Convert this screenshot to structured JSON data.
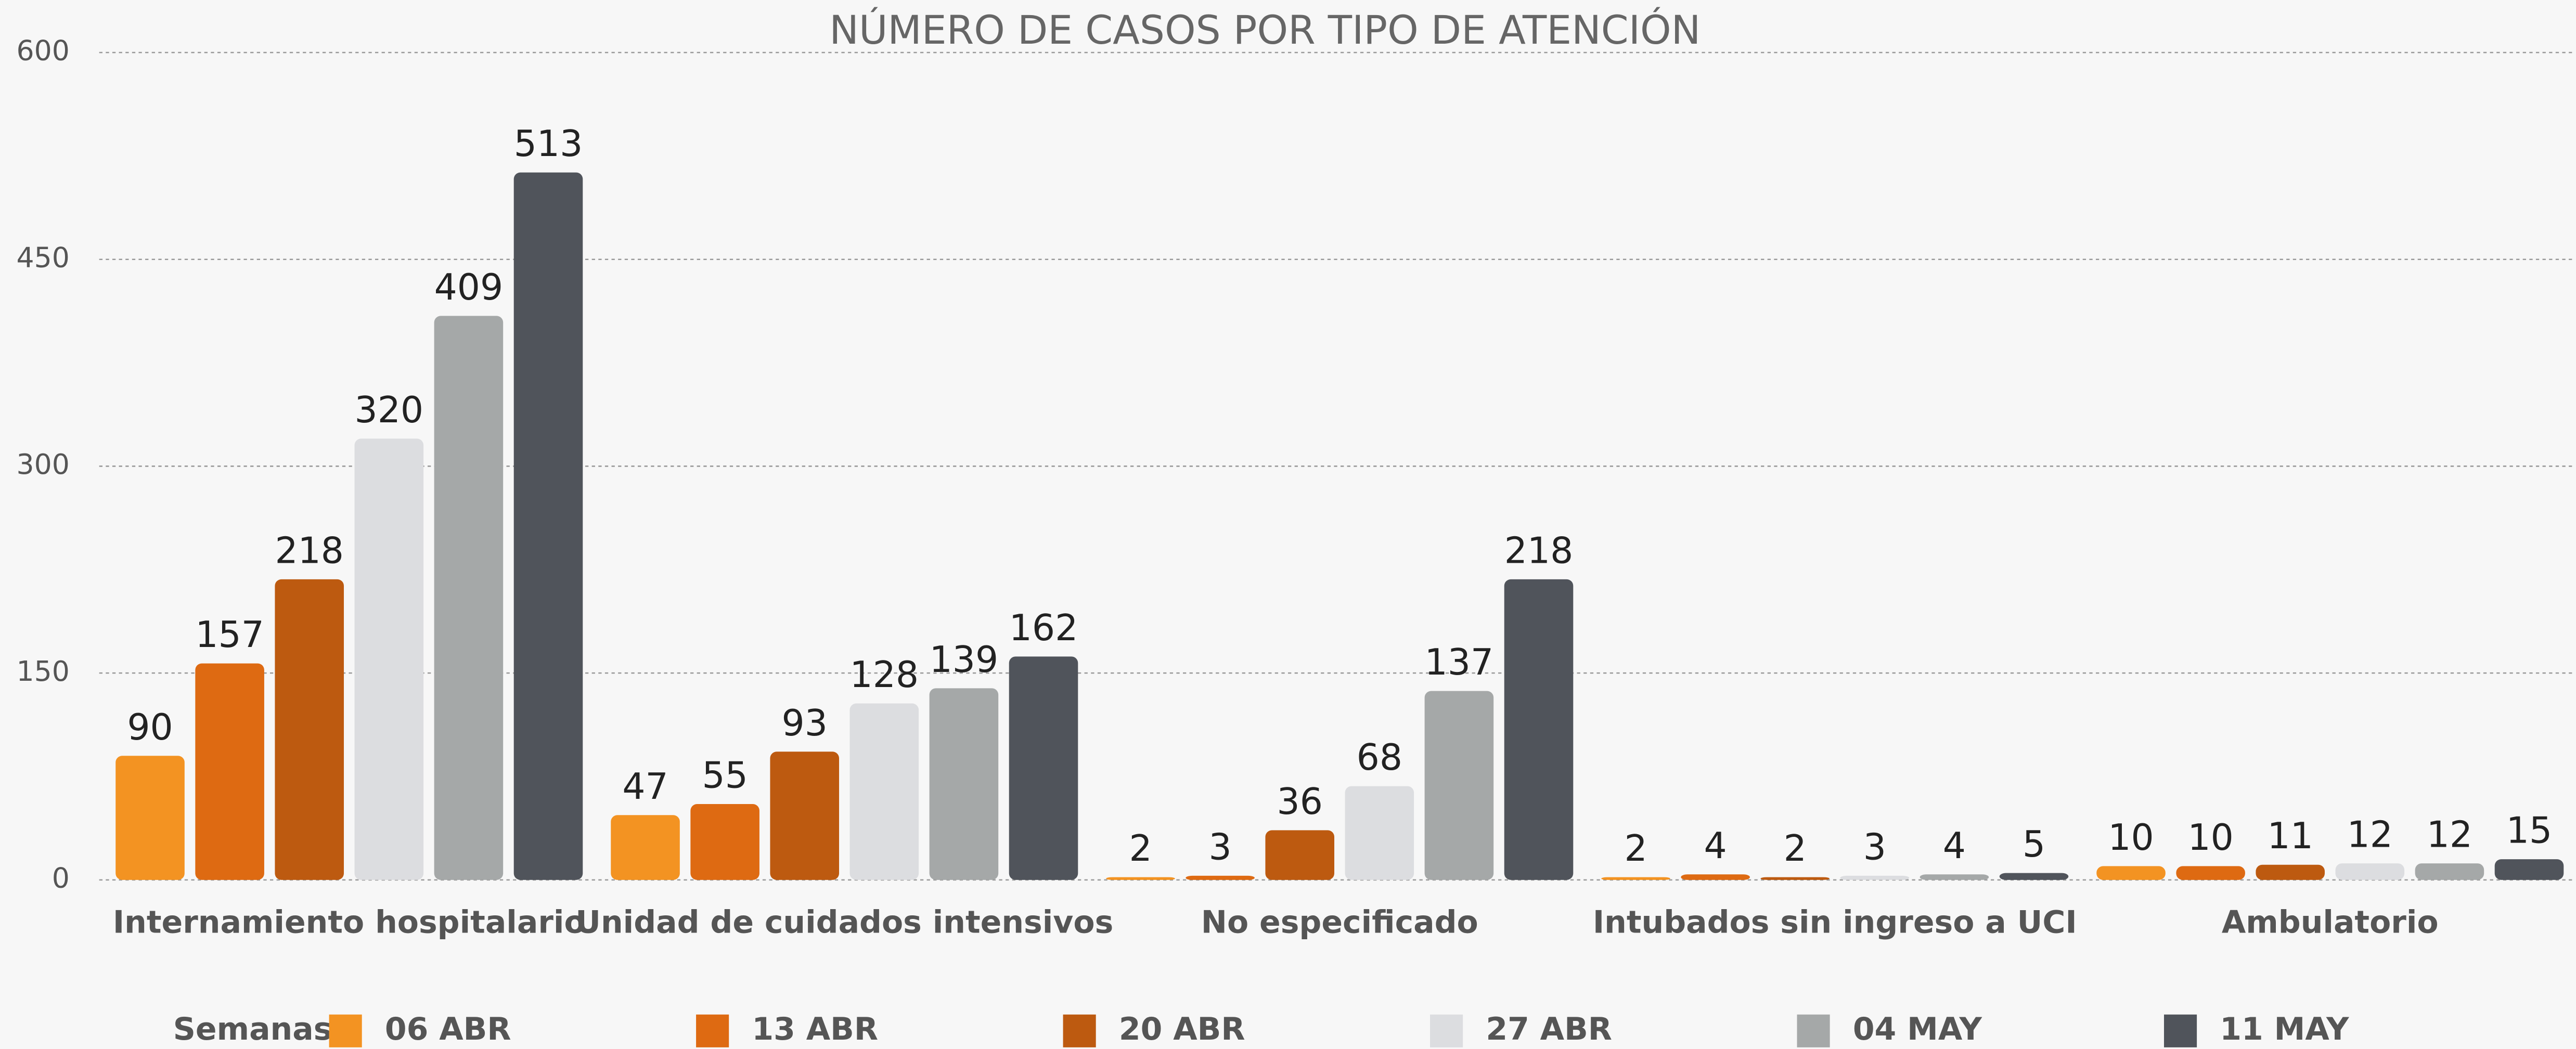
{
  "chart_data": {
    "type": "bar",
    "title": "NÚMERO DE CASOS POR TIPO DE ATENCIÓN",
    "categories": [
      "Internamiento hospitalario",
      "Unidad de cuidados intensivos",
      "No especificado",
      "Intubados sin ingreso a UCI",
      "Ambulatorio"
    ],
    "legend_title": "Semanas",
    "series": [
      {
        "name": "06 ABR",
        "color": "#f39322",
        "values": [
          90,
          47,
          2,
          2,
          10
        ]
      },
      {
        "name": "13 ABR",
        "color": "#de6a12",
        "values": [
          157,
          55,
          3,
          4,
          10
        ]
      },
      {
        "name": "20 ABR",
        "color": "#bd5a10",
        "values": [
          218,
          93,
          36,
          2,
          11
        ]
      },
      {
        "name": "27 ABR",
        "color": "#dcdde0",
        "values": [
          320,
          128,
          68,
          3,
          12
        ]
      },
      {
        "name": "04 MAY",
        "color": "#a5a8a8",
        "values": [
          409,
          139,
          137,
          4,
          12
        ]
      },
      {
        "name": "11 MAY",
        "color": "#50545b",
        "values": [
          513,
          162,
          218,
          5,
          15
        ]
      }
    ],
    "ylim": [
      0,
      600
    ],
    "yticks": [
      0,
      150,
      300,
      450,
      600
    ],
    "grid": true,
    "legend": "bottom"
  }
}
